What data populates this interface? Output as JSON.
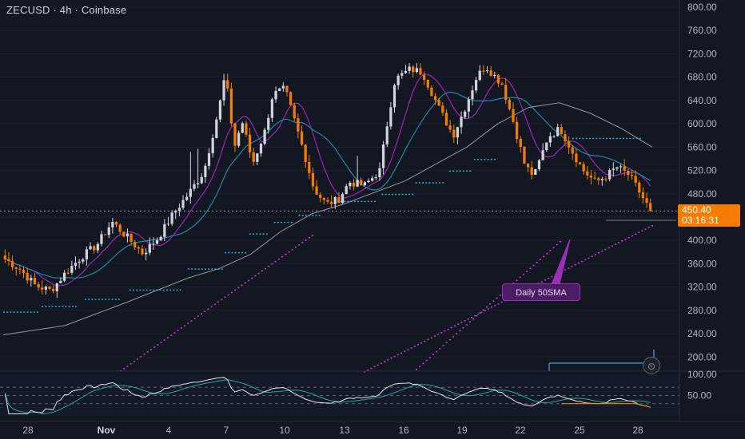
{
  "header": {
    "title": "ZECUSD · 4h · Coinbase"
  },
  "last_price": {
    "value": "450.40",
    "countdown": "03:16:31"
  },
  "annotation": {
    "text": "Daily 50SMA"
  },
  "colors": {
    "background": "#131722",
    "up": "#d1d4dc",
    "down": "#f57c00",
    "ma_fast": "#9c27b0",
    "ma_mid": "#1e88a8",
    "ma_slow": "#9598a1",
    "rsi": "#e0e3eb",
    "rsi_signal": "#26a69a",
    "accent": "#f57c00"
  },
  "icons": {
    "alarm": "alarm-clock-icon"
  },
  "chart_data": [
    {
      "type": "candlestick",
      "title": "ZECUSD · 4h · Coinbase",
      "ylim": [
        180,
        810
      ],
      "y_ticks": [
        200,
        240,
        280,
        320,
        360,
        400,
        440,
        480,
        520,
        560,
        600,
        640,
        680,
        720,
        760,
        800
      ],
      "y_tick_labels": [
        "200.00",
        "240.00",
        "280.00",
        "320.00",
        "360.00",
        "400.00",
        "",
        "480.00",
        "520.00",
        "560.00",
        "600.00",
        "640.00",
        "680.00",
        "720.00",
        "760.00",
        "800.00"
      ],
      "x_tick_labels": [
        "28",
        "Nov",
        "4",
        "7",
        "10",
        "13",
        "16",
        "19",
        "22",
        "25",
        "28"
      ],
      "last_price": 450.4,
      "anchors": [
        {
          "d": 0,
          "p": 368
        },
        {
          "d": 1,
          "p": 350
        },
        {
          "d": 2,
          "p": 322
        },
        {
          "d": 3,
          "p": 314
        },
        {
          "d": 4,
          "p": 346
        },
        {
          "d": 5,
          "p": 372
        },
        {
          "d": 6,
          "p": 392
        },
        {
          "d": 7,
          "p": 432
        },
        {
          "d": 8,
          "p": 405
        },
        {
          "d": 9,
          "p": 378
        },
        {
          "d": 10,
          "p": 404
        },
        {
          "d": 11,
          "p": 446
        },
        {
          "d": 12,
          "p": 480
        },
        {
          "d": 13,
          "p": 518
        },
        {
          "d": 14,
          "p": 628
        },
        {
          "d": 14.4,
          "p": 686
        },
        {
          "d": 15,
          "p": 560
        },
        {
          "d": 15.5,
          "p": 604
        },
        {
          "d": 16.2,
          "p": 532
        },
        {
          "d": 17,
          "p": 588
        },
        {
          "d": 17.5,
          "p": 650
        },
        {
          "d": 18.3,
          "p": 660
        },
        {
          "d": 19.5,
          "p": 555
        },
        {
          "d": 20.2,
          "p": 488
        },
        {
          "d": 21,
          "p": 462
        },
        {
          "d": 21.8,
          "p": 470
        },
        {
          "d": 22.5,
          "p": 500
        },
        {
          "d": 23.5,
          "p": 494
        },
        {
          "d": 24.5,
          "p": 520
        },
        {
          "d": 25,
          "p": 602
        },
        {
          "d": 25.5,
          "p": 676
        },
        {
          "d": 26.5,
          "p": 694
        },
        {
          "d": 27.3,
          "p": 688
        },
        {
          "d": 28.4,
          "p": 625
        },
        {
          "d": 29.3,
          "p": 580
        },
        {
          "d": 30,
          "p": 622
        },
        {
          "d": 30.8,
          "p": 678
        },
        {
          "d": 31.4,
          "p": 700
        },
        {
          "d": 32.5,
          "p": 668
        },
        {
          "d": 33.3,
          "p": 598
        },
        {
          "d": 34,
          "p": 528
        },
        {
          "d": 34.6,
          "p": 510
        },
        {
          "d": 35.5,
          "p": 578
        },
        {
          "d": 36.3,
          "p": 592
        },
        {
          "d": 37.1,
          "p": 552
        },
        {
          "d": 37.8,
          "p": 520
        },
        {
          "d": 38.6,
          "p": 500
        },
        {
          "d": 39.4,
          "p": 512
        },
        {
          "d": 40,
          "p": 526
        },
        {
          "d": 40.8,
          "p": 512
        },
        {
          "d": 41.6,
          "p": 478
        },
        {
          "d": 42.2,
          "p": 450.4
        }
      ],
      "psar_dots": [
        {
          "d0": 0,
          "d1": 2.2,
          "p": 278
        },
        {
          "d0": 2.5,
          "p": 288,
          "d1": 4.8
        },
        {
          "d0": 5.3,
          "d1": 7.6,
          "p": 300
        },
        {
          "d0": 8.2,
          "d1": 11.5,
          "p": 316
        },
        {
          "d0": 12,
          "d1": 14.2,
          "p": 352
        },
        {
          "d0": 14.4,
          "d1": 15.8,
          "p": 380
        },
        {
          "d0": 16,
          "d1": 17.3,
          "p": 412
        },
        {
          "d0": 17.6,
          "d1": 18.9,
          "p": 432
        },
        {
          "d0": 19.2,
          "d1": 20.7,
          "p": 444
        },
        {
          "d0": 21.5,
          "d1": 24.3,
          "p": 468
        },
        {
          "d0": 24.6,
          "d1": 26.6,
          "p": 480
        },
        {
          "d0": 26.8,
          "d1": 28.6,
          "p": 500
        },
        {
          "d0": 29,
          "d1": 30.4,
          "p": 520
        },
        {
          "d0": 30.6,
          "d1": 32,
          "p": 540
        },
        {
          "d0": 37,
          "d1": 41.5,
          "p": 576
        }
      ],
      "psar_purple": [
        {
          "d0": 29.5,
          "d1": 42.2,
          "p0": 180,
          "p1": 302,
          "step": 6
        },
        {
          "d0": 5.5,
          "d1": 13.5,
          "p0": 180,
          "p1": 214
        }
      ],
      "ma_slow_points": [
        [
          0,
          238
        ],
        [
          4,
          254
        ],
        [
          8,
          294
        ],
        [
          12,
          336
        ],
        [
          14,
          352
        ],
        [
          16,
          376
        ],
        [
          18,
          416
        ],
        [
          20,
          446
        ],
        [
          22,
          462
        ],
        [
          26,
          502
        ],
        [
          30,
          560
        ],
        [
          32,
          600
        ],
        [
          34,
          628
        ],
        [
          36,
          636
        ],
        [
          38,
          618
        ],
        [
          40,
          592
        ],
        [
          42,
          560
        ]
      ],
      "daily_sma_points": [
        [
          8,
          268
        ],
        [
          13,
          318
        ],
        [
          18,
          350
        ],
        [
          24,
          395
        ],
        [
          30,
          430
        ],
        [
          35,
          455
        ],
        [
          42.2,
          462
        ]
      ],
      "rsi": {
        "ylim": [
          0,
          100
        ],
        "levels": [
          70,
          50,
          30
        ],
        "tick_labels": [
          "100.00",
          "50.00"
        ],
        "last": 18,
        "signal_last": 24
      }
    }
  ]
}
